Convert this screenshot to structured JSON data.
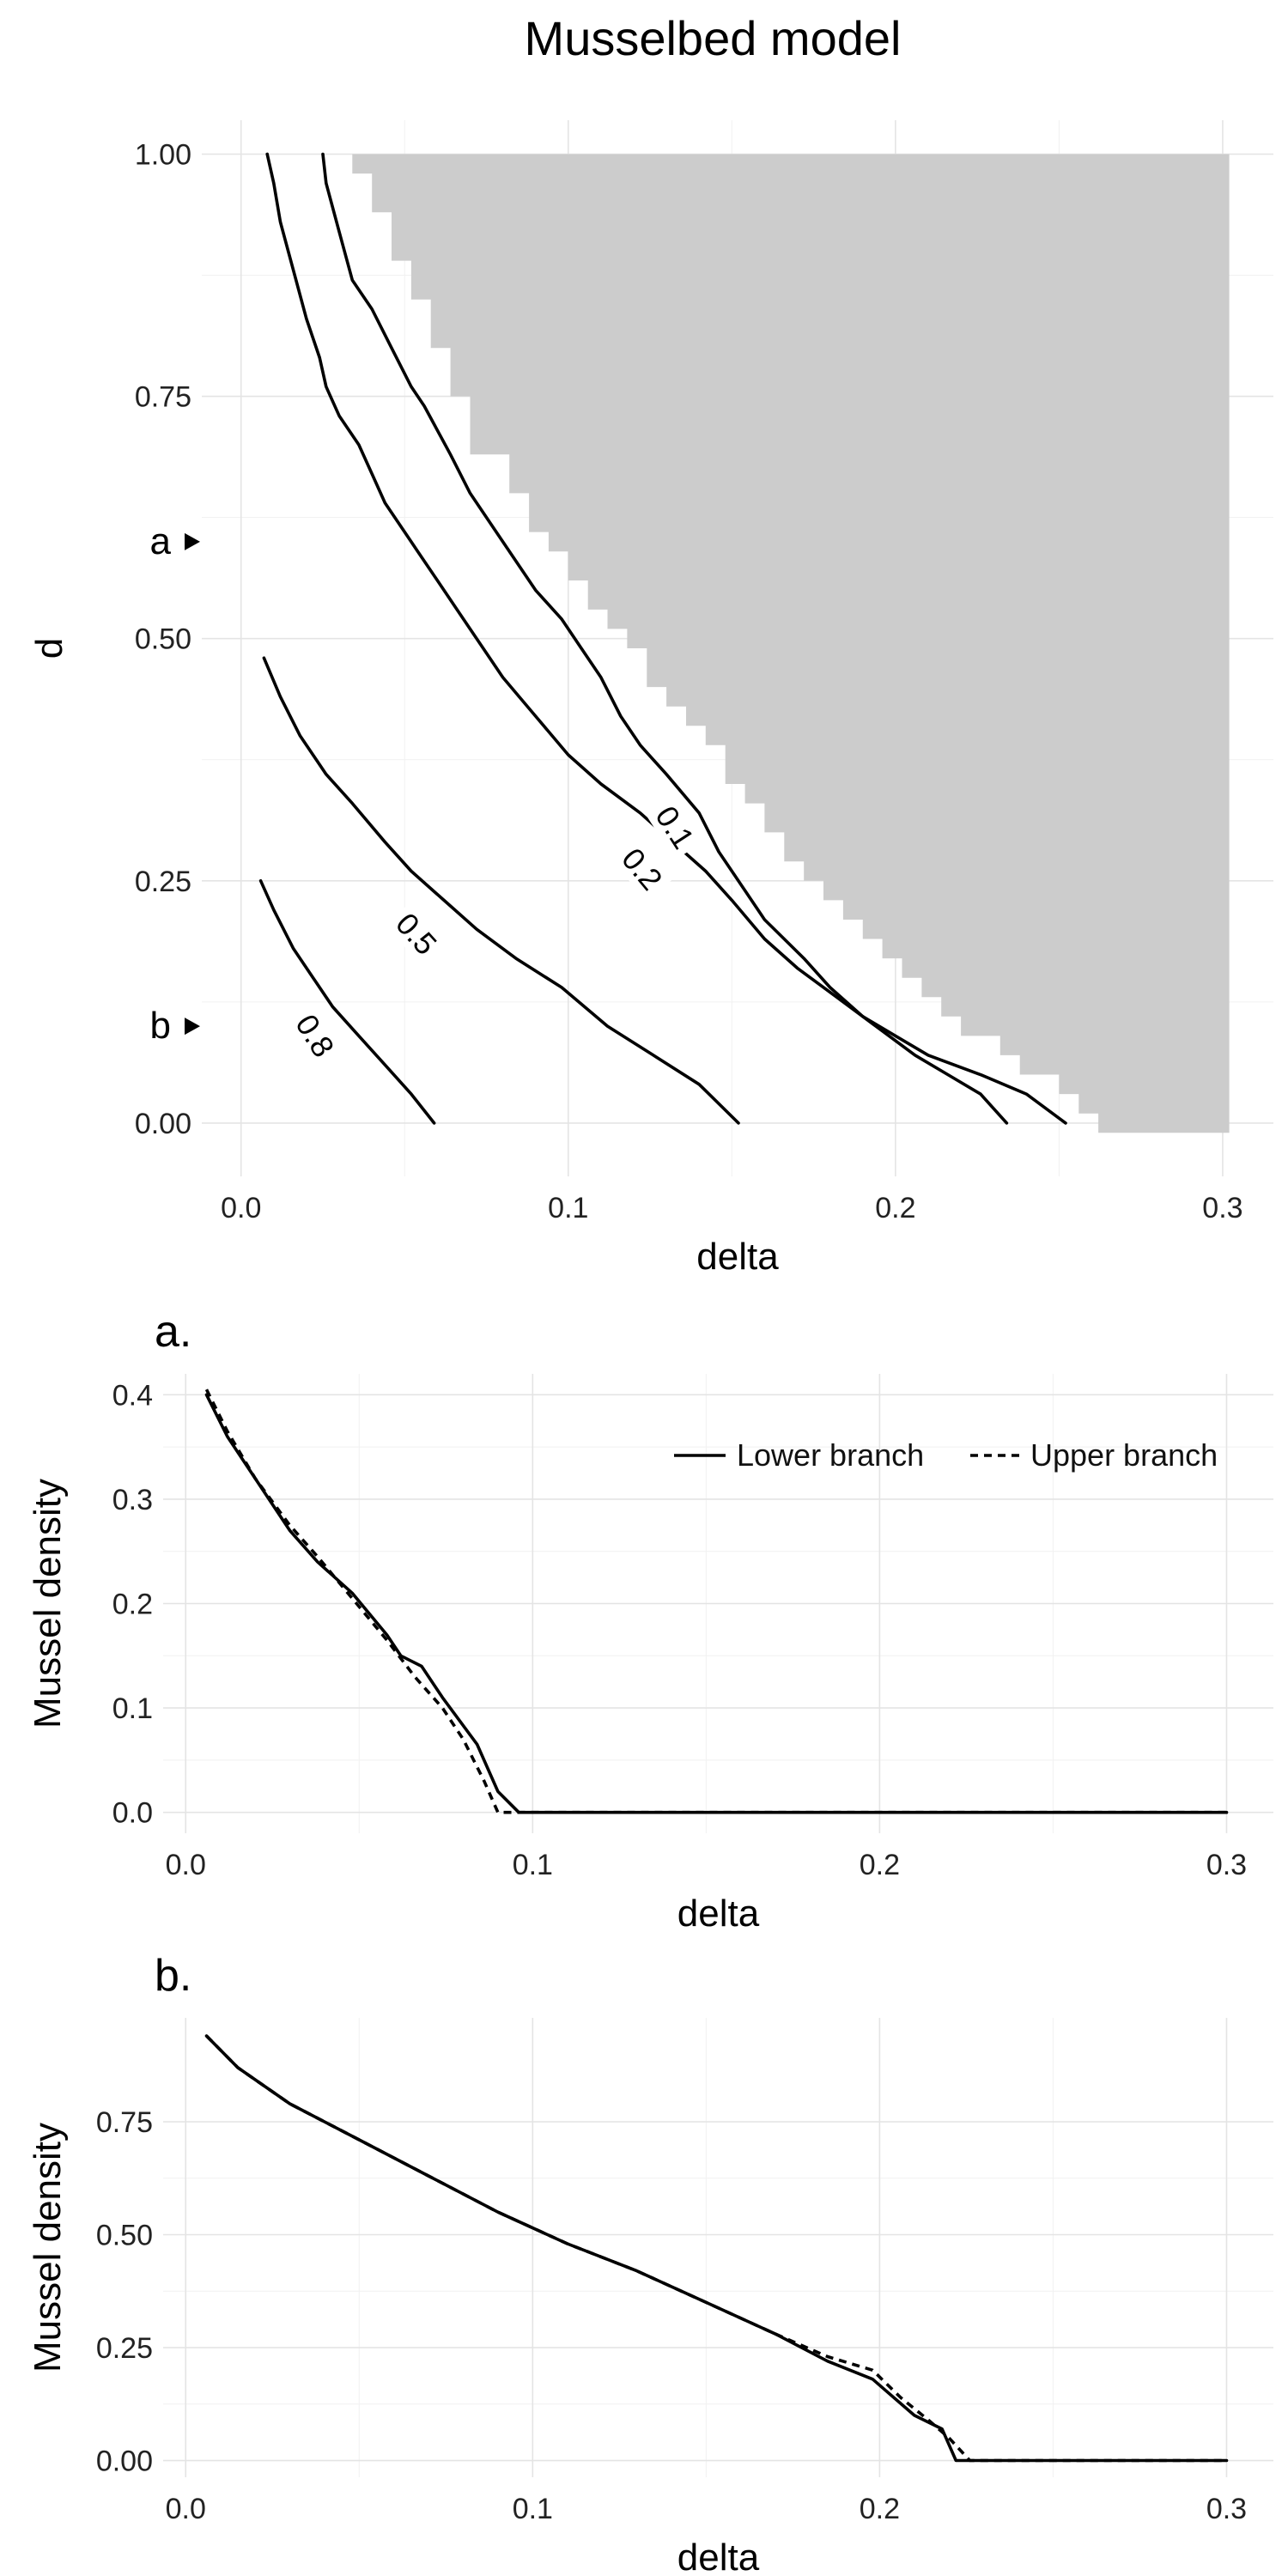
{
  "chart_data": [
    {
      "id": "top",
      "type": "contour",
      "title": "Musselbed model",
      "xlabel": "delta",
      "ylabel": "d",
      "xlim": [
        0,
        0.3
      ],
      "ylim": [
        0,
        1
      ],
      "xticks": [
        0,
        0.1,
        0.2,
        0.3
      ],
      "xtick_labels": [
        "0.0",
        "0.1",
        "0.2",
        "0.3"
      ],
      "yticks": [
        0,
        0.25,
        0.5,
        0.75,
        1
      ],
      "ytick_labels": [
        "0.00",
        "0.25",
        "0.50",
        "0.75",
        "1.00"
      ],
      "grid": true,
      "markers": [
        {
          "label": "a",
          "d": 0.6
        },
        {
          "label": "b",
          "d": 0.1
        }
      ],
      "region": {
        "description": "shaded area",
        "color": "#cccccc",
        "boundary": [
          {
            "x": 0.034,
            "y": 1.0
          },
          {
            "x": 0.034,
            "y": 0.98
          },
          {
            "x": 0.04,
            "y": 0.98
          },
          {
            "x": 0.04,
            "y": 0.94
          },
          {
            "x": 0.046,
            "y": 0.94
          },
          {
            "x": 0.046,
            "y": 0.89
          },
          {
            "x": 0.052,
            "y": 0.89
          },
          {
            "x": 0.052,
            "y": 0.85
          },
          {
            "x": 0.058,
            "y": 0.85
          },
          {
            "x": 0.058,
            "y": 0.8
          },
          {
            "x": 0.064,
            "y": 0.8
          },
          {
            "x": 0.064,
            "y": 0.75
          },
          {
            "x": 0.07,
            "y": 0.75
          },
          {
            "x": 0.07,
            "y": 0.69
          },
          {
            "x": 0.082,
            "y": 0.69
          },
          {
            "x": 0.082,
            "y": 0.65
          },
          {
            "x": 0.088,
            "y": 0.65
          },
          {
            "x": 0.088,
            "y": 0.61
          },
          {
            "x": 0.094,
            "y": 0.61
          },
          {
            "x": 0.094,
            "y": 0.59
          },
          {
            "x": 0.1,
            "y": 0.59
          },
          {
            "x": 0.1,
            "y": 0.56
          },
          {
            "x": 0.106,
            "y": 0.56
          },
          {
            "x": 0.106,
            "y": 0.53
          },
          {
            "x": 0.112,
            "y": 0.53
          },
          {
            "x": 0.112,
            "y": 0.51
          },
          {
            "x": 0.118,
            "y": 0.51
          },
          {
            "x": 0.118,
            "y": 0.49
          },
          {
            "x": 0.124,
            "y": 0.49
          },
          {
            "x": 0.124,
            "y": 0.45
          },
          {
            "x": 0.13,
            "y": 0.45
          },
          {
            "x": 0.13,
            "y": 0.43
          },
          {
            "x": 0.136,
            "y": 0.43
          },
          {
            "x": 0.136,
            "y": 0.41
          },
          {
            "x": 0.142,
            "y": 0.41
          },
          {
            "x": 0.142,
            "y": 0.39
          },
          {
            "x": 0.148,
            "y": 0.39
          },
          {
            "x": 0.148,
            "y": 0.35
          },
          {
            "x": 0.154,
            "y": 0.35
          },
          {
            "x": 0.154,
            "y": 0.33
          },
          {
            "x": 0.16,
            "y": 0.33
          },
          {
            "x": 0.16,
            "y": 0.3
          },
          {
            "x": 0.166,
            "y": 0.3
          },
          {
            "x": 0.166,
            "y": 0.27
          },
          {
            "x": 0.172,
            "y": 0.27
          },
          {
            "x": 0.172,
            "y": 0.25
          },
          {
            "x": 0.178,
            "y": 0.25
          },
          {
            "x": 0.178,
            "y": 0.23
          },
          {
            "x": 0.184,
            "y": 0.23
          },
          {
            "x": 0.184,
            "y": 0.21
          },
          {
            "x": 0.19,
            "y": 0.21
          },
          {
            "x": 0.19,
            "y": 0.19
          },
          {
            "x": 0.196,
            "y": 0.19
          },
          {
            "x": 0.196,
            "y": 0.17
          },
          {
            "x": 0.202,
            "y": 0.17
          },
          {
            "x": 0.202,
            "y": 0.15
          },
          {
            "x": 0.208,
            "y": 0.15
          },
          {
            "x": 0.208,
            "y": 0.13
          },
          {
            "x": 0.214,
            "y": 0.13
          },
          {
            "x": 0.214,
            "y": 0.11
          },
          {
            "x": 0.22,
            "y": 0.11
          },
          {
            "x": 0.22,
            "y": 0.09
          },
          {
            "x": 0.232,
            "y": 0.09
          },
          {
            "x": 0.232,
            "y": 0.07
          },
          {
            "x": 0.238,
            "y": 0.07
          },
          {
            "x": 0.238,
            "y": 0.05
          },
          {
            "x": 0.25,
            "y": 0.05
          },
          {
            "x": 0.25,
            "y": 0.03
          },
          {
            "x": 0.256,
            "y": 0.03
          },
          {
            "x": 0.256,
            "y": 0.01
          },
          {
            "x": 0.262,
            "y": 0.01
          },
          {
            "x": 0.262,
            "y": -0.01
          },
          {
            "x": 0.302,
            "y": -0.01
          },
          {
            "x": 0.302,
            "y": 1.0
          }
        ]
      },
      "series": [
        {
          "label": "0.1",
          "points": [
            {
              "x": 0.025,
              "y": 1.0
            },
            {
              "x": 0.026,
              "y": 0.97
            },
            {
              "x": 0.03,
              "y": 0.92
            },
            {
              "x": 0.034,
              "y": 0.87
            },
            {
              "x": 0.04,
              "y": 0.84
            },
            {
              "x": 0.046,
              "y": 0.8
            },
            {
              "x": 0.052,
              "y": 0.76
            },
            {
              "x": 0.056,
              "y": 0.74
            },
            {
              "x": 0.064,
              "y": 0.69
            },
            {
              "x": 0.07,
              "y": 0.65
            },
            {
              "x": 0.078,
              "y": 0.61
            },
            {
              "x": 0.084,
              "y": 0.58
            },
            {
              "x": 0.09,
              "y": 0.55
            },
            {
              "x": 0.098,
              "y": 0.52
            },
            {
              "x": 0.104,
              "y": 0.49
            },
            {
              "x": 0.11,
              "y": 0.46
            },
            {
              "x": 0.116,
              "y": 0.42
            },
            {
              "x": 0.122,
              "y": 0.39
            },
            {
              "x": 0.13,
              "y": 0.36
            },
            {
              "x": 0.14,
              "y": 0.32
            },
            {
              "x": 0.146,
              "y": 0.28
            },
            {
              "x": 0.154,
              "y": 0.24
            },
            {
              "x": 0.16,
              "y": 0.21
            },
            {
              "x": 0.172,
              "y": 0.17
            },
            {
              "x": 0.18,
              "y": 0.14
            },
            {
              "x": 0.19,
              "y": 0.11
            },
            {
              "x": 0.2,
              "y": 0.09
            },
            {
              "x": 0.21,
              "y": 0.07
            },
            {
              "x": 0.226,
              "y": 0.05
            },
            {
              "x": 0.24,
              "y": 0.03
            },
            {
              "x": 0.252,
              "y": 0.0
            }
          ]
        },
        {
          "label": "0.2",
          "points": [
            {
              "x": 0.008,
              "y": 1.0
            },
            {
              "x": 0.01,
              "y": 0.97
            },
            {
              "x": 0.012,
              "y": 0.93
            },
            {
              "x": 0.016,
              "y": 0.88
            },
            {
              "x": 0.02,
              "y": 0.83
            },
            {
              "x": 0.024,
              "y": 0.79
            },
            {
              "x": 0.026,
              "y": 0.76
            },
            {
              "x": 0.03,
              "y": 0.73
            },
            {
              "x": 0.036,
              "y": 0.7
            },
            {
              "x": 0.04,
              "y": 0.67
            },
            {
              "x": 0.044,
              "y": 0.64
            },
            {
              "x": 0.048,
              "y": 0.62
            },
            {
              "x": 0.054,
              "y": 0.59
            },
            {
              "x": 0.06,
              "y": 0.56
            },
            {
              "x": 0.066,
              "y": 0.53
            },
            {
              "x": 0.072,
              "y": 0.5
            },
            {
              "x": 0.08,
              "y": 0.46
            },
            {
              "x": 0.09,
              "y": 0.42
            },
            {
              "x": 0.1,
              "y": 0.38
            },
            {
              "x": 0.11,
              "y": 0.35
            },
            {
              "x": 0.122,
              "y": 0.32
            },
            {
              "x": 0.132,
              "y": 0.29
            },
            {
              "x": 0.142,
              "y": 0.26
            },
            {
              "x": 0.15,
              "y": 0.23
            },
            {
              "x": 0.16,
              "y": 0.19
            },
            {
              "x": 0.17,
              "y": 0.16
            },
            {
              "x": 0.182,
              "y": 0.13
            },
            {
              "x": 0.194,
              "y": 0.1
            },
            {
              "x": 0.206,
              "y": 0.07
            },
            {
              "x": 0.216,
              "y": 0.05
            },
            {
              "x": 0.226,
              "y": 0.03
            },
            {
              "x": 0.234,
              "y": 0.0
            }
          ]
        },
        {
          "label": "0.5",
          "points": [
            {
              "x": 0.007,
              "y": 0.48
            },
            {
              "x": 0.012,
              "y": 0.44
            },
            {
              "x": 0.018,
              "y": 0.4
            },
            {
              "x": 0.026,
              "y": 0.36
            },
            {
              "x": 0.034,
              "y": 0.33
            },
            {
              "x": 0.044,
              "y": 0.29
            },
            {
              "x": 0.052,
              "y": 0.26
            },
            {
              "x": 0.062,
              "y": 0.23
            },
            {
              "x": 0.072,
              "y": 0.2
            },
            {
              "x": 0.084,
              "y": 0.17
            },
            {
              "x": 0.098,
              "y": 0.14
            },
            {
              "x": 0.112,
              "y": 0.1
            },
            {
              "x": 0.126,
              "y": 0.07
            },
            {
              "x": 0.14,
              "y": 0.04
            },
            {
              "x": 0.152,
              "y": 0.0
            }
          ]
        },
        {
          "label": "0.8",
          "points": [
            {
              "x": 0.006,
              "y": 0.25
            },
            {
              "x": 0.01,
              "y": 0.22
            },
            {
              "x": 0.016,
              "y": 0.18
            },
            {
              "x": 0.022,
              "y": 0.15
            },
            {
              "x": 0.028,
              "y": 0.12
            },
            {
              "x": 0.036,
              "y": 0.09
            },
            {
              "x": 0.044,
              "y": 0.06
            },
            {
              "x": 0.052,
              "y": 0.03
            },
            {
              "x": 0.059,
              "y": 0.0
            }
          ]
        }
      ]
    },
    {
      "id": "a",
      "type": "line",
      "panel_label": "a.",
      "xlabel": "delta",
      "ylabel": "Mussel density",
      "xlim": [
        0,
        0.3
      ],
      "ylim": [
        0,
        0.4
      ],
      "xticks": [
        0,
        0.1,
        0.2,
        0.3
      ],
      "xtick_labels": [
        "0.0",
        "0.1",
        "0.2",
        "0.3"
      ],
      "yticks": [
        0,
        0.1,
        0.2,
        0.3,
        0.4
      ],
      "ytick_labels": [
        "0.0",
        "0.1",
        "0.2",
        "0.3",
        "0.4"
      ],
      "grid": true,
      "legend": {
        "placement": "top-right"
      },
      "series": [
        {
          "name": "Lower branch",
          "style": "solid",
          "points": [
            {
              "x": 0.006,
              "y": 0.4
            },
            {
              "x": 0.012,
              "y": 0.36
            },
            {
              "x": 0.02,
              "y": 0.32
            },
            {
              "x": 0.03,
              "y": 0.27
            },
            {
              "x": 0.038,
              "y": 0.24
            },
            {
              "x": 0.048,
              "y": 0.21
            },
            {
              "x": 0.058,
              "y": 0.17
            },
            {
              "x": 0.062,
              "y": 0.15
            },
            {
              "x": 0.068,
              "y": 0.14
            },
            {
              "x": 0.074,
              "y": 0.11
            },
            {
              "x": 0.084,
              "y": 0.065
            },
            {
              "x": 0.09,
              "y": 0.02
            },
            {
              "x": 0.096,
              "y": 0.0
            },
            {
              "x": 0.3,
              "y": 0.0
            }
          ]
        },
        {
          "name": "Upper branch",
          "style": "dashed",
          "points": [
            {
              "x": 0.006,
              "y": 0.405
            },
            {
              "x": 0.012,
              "y": 0.365
            },
            {
              "x": 0.02,
              "y": 0.32
            },
            {
              "x": 0.03,
              "y": 0.275
            },
            {
              "x": 0.038,
              "y": 0.245
            },
            {
              "x": 0.048,
              "y": 0.205
            },
            {
              "x": 0.058,
              "y": 0.165
            },
            {
              "x": 0.066,
              "y": 0.13
            },
            {
              "x": 0.074,
              "y": 0.1
            },
            {
              "x": 0.08,
              "y": 0.07
            },
            {
              "x": 0.086,
              "y": 0.03
            },
            {
              "x": 0.09,
              "y": 0.0
            },
            {
              "x": 0.3,
              "y": 0.0
            }
          ]
        }
      ]
    },
    {
      "id": "b",
      "type": "line",
      "panel_label": "b.",
      "xlabel": "delta",
      "ylabel": "Mussel density",
      "xlim": [
        0,
        0.3
      ],
      "ylim": [
        0,
        0.95
      ],
      "xticks": [
        0,
        0.1,
        0.2,
        0.3
      ],
      "xtick_labels": [
        "0.0",
        "0.1",
        "0.2",
        "0.3"
      ],
      "yticks": [
        0,
        0.25,
        0.5,
        0.75
      ],
      "ytick_labels": [
        "0.00",
        "0.25",
        "0.50",
        "0.75"
      ],
      "grid": true,
      "series": [
        {
          "name": "Lower branch",
          "style": "solid",
          "points": [
            {
              "x": 0.006,
              "y": 0.94
            },
            {
              "x": 0.015,
              "y": 0.87
            },
            {
              "x": 0.03,
              "y": 0.79
            },
            {
              "x": 0.05,
              "y": 0.71
            },
            {
              "x": 0.07,
              "y": 0.63
            },
            {
              "x": 0.09,
              "y": 0.55
            },
            {
              "x": 0.11,
              "y": 0.48
            },
            {
              "x": 0.13,
              "y": 0.42
            },
            {
              "x": 0.15,
              "y": 0.35
            },
            {
              "x": 0.17,
              "y": 0.28
            },
            {
              "x": 0.185,
              "y": 0.22
            },
            {
              "x": 0.198,
              "y": 0.18
            },
            {
              "x": 0.21,
              "y": 0.1
            },
            {
              "x": 0.218,
              "y": 0.07
            },
            {
              "x": 0.222,
              "y": 0.0
            },
            {
              "x": 0.3,
              "y": 0.0
            }
          ]
        },
        {
          "name": "Upper branch",
          "style": "dashed",
          "points": [
            {
              "x": 0.006,
              "y": 0.94
            },
            {
              "x": 0.015,
              "y": 0.87
            },
            {
              "x": 0.03,
              "y": 0.79
            },
            {
              "x": 0.05,
              "y": 0.71
            },
            {
              "x": 0.07,
              "y": 0.63
            },
            {
              "x": 0.09,
              "y": 0.55
            },
            {
              "x": 0.11,
              "y": 0.48
            },
            {
              "x": 0.13,
              "y": 0.42
            },
            {
              "x": 0.15,
              "y": 0.35
            },
            {
              "x": 0.17,
              "y": 0.28
            },
            {
              "x": 0.185,
              "y": 0.23
            },
            {
              "x": 0.198,
              "y": 0.2
            },
            {
              "x": 0.206,
              "y": 0.14
            },
            {
              "x": 0.214,
              "y": 0.09
            },
            {
              "x": 0.22,
              "y": 0.05
            },
            {
              "x": 0.226,
              "y": 0.0
            },
            {
              "x": 0.3,
              "y": 0.0
            }
          ]
        }
      ]
    }
  ]
}
